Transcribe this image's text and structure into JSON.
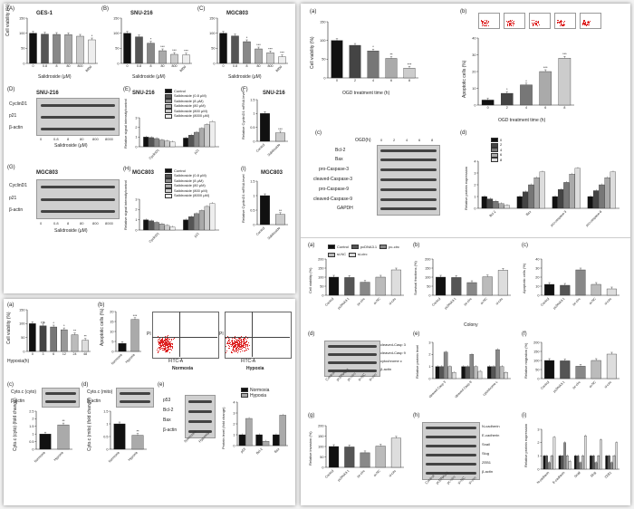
{
  "figure_left_top": {
    "panel_A": {
      "letter": "(A)",
      "title": "GES-1"
    },
    "panel_B": {
      "letter": "(B)",
      "title": "SNU-216"
    },
    "panel_C": {
      "letter": "(C)",
      "title": "MGC803"
    },
    "viability_ylabel": "Cell viability (%)",
    "salidroside_xlabel": "Salidroside (μM)",
    "dose_ticks": [
      "0",
      "0.8",
      "8",
      "80",
      "800",
      "8000"
    ],
    "panel_D": {
      "letter": "(D)",
      "title": "SNU-216",
      "bands": [
        "CyclinD1",
        "p21",
        "β-actin"
      ],
      "lanes": [
        "0",
        "0.8",
        "8",
        "80",
        "800",
        "8000"
      ],
      "xlabel": "Salidroside (μM)"
    },
    "panel_E": {
      "letter": "(E)",
      "title": "SNU-216",
      "ylabel": "Relative signal intensity/control",
      "groups": [
        "CyclinD1",
        "p21"
      ],
      "legend": [
        "Control",
        "Salidroside (0.8 μM)",
        "Salidroside (8 μM)",
        "Salidroside (80 μM)",
        "Salidroside (800 μM)",
        "Salidroside (8000 μM)"
      ]
    },
    "panel_F": {
      "letter": "(F)",
      "title": "SNU-216",
      "ylabel": "Relative CyclinD1 mRNA level",
      "categories": [
        "Control",
        "Salidroside"
      ]
    },
    "panel_G": {
      "letter": "(G)",
      "title": "MGC803",
      "bands": [
        "CyclinD1",
        "p21",
        "β-actin"
      ],
      "lanes": [
        "0",
        "0.8",
        "8",
        "80",
        "800",
        "8000"
      ],
      "xlabel": "Salidroside (μM)"
    },
    "panel_H": {
      "letter": "(H)",
      "title": "MGC803",
      "ylabel": "Relative signal intensity/control",
      "groups": [
        "CyclinD1",
        "p21"
      ],
      "legend": [
        "Control",
        "Salidroside (0.8 μM)",
        "Salidroside (8 μM)",
        "Salidroside (80 μM)",
        "Salidroside (800 μM)",
        "Salidroside (8000 μM)"
      ]
    },
    "panel_I": {
      "letter": "(I)",
      "title": "MGC803",
      "ylabel": "Relative CyclinD1 mRNA level",
      "categories": [
        "Control",
        "Salidroside"
      ]
    }
  },
  "figure_left_bottom": {
    "panel_a": {
      "letter": "(a)",
      "ylabel": "Cell viability (%)",
      "xlabel": "Hypoxia(h)",
      "ticks": [
        "0",
        "3",
        "6",
        "12",
        "24",
        "48"
      ]
    },
    "panel_b": {
      "letter": "(b)",
      "ylabel": "Apoptotic cells (%)",
      "categories": [
        "Normoxia",
        "Hypoxia"
      ],
      "flow_captions": [
        "Normoxia",
        "Hypoxia"
      ],
      "pi_label": "PI",
      "annexin_label": "FITC-A"
    },
    "panel_c": {
      "letter": "(c)",
      "bands": [
        "Cyto.c (cyto)",
        "β-actin"
      ],
      "ylabel": "Cyto.c (cyto) (fold change)",
      "categories": [
        "Normoxia",
        "Hypoxia"
      ]
    },
    "panel_d": {
      "letter": "(d)",
      "bands": [
        "Cyto.c (mito)",
        "β-actin"
      ],
      "ylabel": "Cyto.c (mito) (fold change)",
      "categories": [
        "Normoxia",
        "Hypoxia"
      ]
    },
    "panel_e": {
      "letter": "(e)",
      "bands": [
        "p53",
        "Bcl-2",
        "Bax",
        "β-actin"
      ],
      "lanes": [
        "Normoxia",
        "Hypoxia"
      ],
      "ylabel": "Protein level (fold change)",
      "groups": [
        "p53",
        "Bcl-2",
        "Bax"
      ],
      "legend": [
        "Normoxia",
        "Hypoxia"
      ]
    }
  },
  "figure_right": {
    "panel_a": {
      "letter": "(a)",
      "ylabel": "Cell viability (%)",
      "xlabel": "OGD treatment time (h)",
      "ticks": [
        "0",
        "2",
        "4",
        "6",
        "8"
      ]
    },
    "panel_b": {
      "letter": "(b)",
      "ylabel": "Apoptotic cells (%)",
      "xlabel": "OGD treatment time (h)",
      "ticks": [
        "0",
        "2",
        "4",
        "6",
        "8"
      ]
    },
    "panel_c": {
      "letter": "(c)",
      "header": "OGD(h)",
      "lanes": [
        "0",
        "2",
        "4",
        "6",
        "8"
      ],
      "bands": [
        "Bcl-2",
        "Bax",
        "pro-Caspase-3",
        "cleaved-Caspase-3",
        "pro-Caspase-9",
        "cleaved-Caspase-9",
        "GAPDH"
      ]
    },
    "panel_d": {
      "letter": "(d)",
      "ylabel": "Relative protein expression",
      "groups": [
        "Bcl-2",
        "Bax",
        "pro-caspase-3",
        "pro-caspase-9"
      ],
      "legend": [
        "0",
        "2",
        "4",
        "6",
        "8"
      ]
    },
    "lower_legend": [
      "Control",
      "pcDNA3.1",
      "pc-circ",
      "si-NC",
      "si-circ"
    ],
    "lower_categories": [
      "Control",
      "pcDNA3.1",
      "pc-circ",
      "si-NC",
      "si-circ"
    ],
    "panel_la": {
      "letter": "(a)",
      "ylabel": "Cell viability (%)"
    },
    "panel_lb": {
      "letter": "(b)",
      "ylabel": "Survival fractions (%)",
      "xlabel": "Colony"
    },
    "panel_lc": {
      "letter": "(c)",
      "ylabel": "Apoptotic cells (%)"
    },
    "panel_ld": {
      "letter": "(d)",
      "bands": [
        "cleaved-Casp 3",
        "cleaved-Casp 9",
        "cytochrome c",
        "β-actin"
      ]
    },
    "panel_le": {
      "letter": "(e)",
      "ylabel": "Relative protein level",
      "groups": [
        "cleaved Casp 3",
        "cleaved Casp 9",
        "cytochrome c"
      ]
    },
    "panel_lf": {
      "letter": "(f)",
      "ylabel": "Relative migration (%)"
    },
    "panel_lg": {
      "letter": "(g)",
      "ylabel": "Relative invasion (%)"
    },
    "panel_lh": {
      "letter": "(h)",
      "bands": [
        "N-cadherin",
        "E-cadherin",
        "Snail",
        "Slug",
        "ZEB1",
        "β-actin"
      ]
    },
    "panel_li": {
      "letter": "(i)",
      "ylabel": "Relative protein expression",
      "groups": [
        "N-cadherin",
        "E-cadherin",
        "Snail",
        "Slug",
        "ZEB1"
      ]
    }
  },
  "chart_data": [
    {
      "id": "lt-A",
      "type": "bar",
      "categories": [
        "0",
        "0.8",
        "8",
        "80",
        "800",
        "8000"
      ],
      "values": [
        100,
        97,
        96,
        95,
        90,
        78
      ],
      "ylim": [
        0,
        150
      ],
      "yticks": [
        0,
        50,
        100,
        150
      ],
      "colors": [
        "#111",
        "#555",
        "#888",
        "#aaa",
        "#ccc",
        "#eee"
      ],
      "sig": [
        "",
        "",
        "",
        "",
        "",
        "*"
      ]
    },
    {
      "id": "lt-B",
      "type": "bar",
      "categories": [
        "0",
        "0.8",
        "8",
        "80",
        "800",
        "8000"
      ],
      "values": [
        100,
        88,
        67,
        42,
        30,
        28
      ],
      "ylim": [
        0,
        150
      ],
      "yticks": [
        0,
        50,
        100,
        150
      ],
      "colors": [
        "#111",
        "#555",
        "#888",
        "#aaa",
        "#ccc",
        "#eee"
      ],
      "sig": [
        "",
        "",
        "*",
        "***",
        "***",
        "***"
      ]
    },
    {
      "id": "lt-C",
      "type": "bar",
      "categories": [
        "0",
        "0.8",
        "8",
        "80",
        "800",
        "8000"
      ],
      "values": [
        100,
        91,
        72,
        48,
        35,
        22
      ],
      "ylim": [
        0,
        150
      ],
      "yticks": [
        0,
        50,
        100,
        150
      ],
      "colors": [
        "#111",
        "#555",
        "#888",
        "#aaa",
        "#ccc",
        "#eee"
      ],
      "sig": [
        "",
        "",
        "*",
        "***",
        "***",
        "***"
      ]
    },
    {
      "id": "lt-E",
      "type": "bar",
      "categories": [
        "CyclinD1",
        "p21"
      ],
      "series": [
        {
          "values": [
            1.0,
            0.9
          ]
        },
        {
          "values": [
            0.95,
            1.2
          ]
        },
        {
          "values": [
            0.85,
            1.5
          ]
        },
        {
          "values": [
            0.7,
            1.9
          ]
        },
        {
          "values": [
            0.6,
            2.3
          ]
        },
        {
          "values": [
            0.5,
            2.6
          ]
        }
      ],
      "ylim": [
        0,
        3
      ],
      "yticks": [
        0,
        1,
        2,
        3
      ],
      "colors": [
        "#111",
        "#555",
        "#888",
        "#aaa",
        "#ccc",
        "#eee"
      ]
    },
    {
      "id": "lt-F",
      "type": "bar",
      "categories": [
        "Control",
        "Salidroside"
      ],
      "values": [
        1.0,
        0.3
      ],
      "ylim": [
        0,
        1.5
      ],
      "yticks": [
        0,
        0.5,
        1.0,
        1.5
      ],
      "colors": [
        "#111",
        "#ccc"
      ],
      "sig": [
        "",
        "***"
      ]
    },
    {
      "id": "lt-H",
      "type": "bar",
      "categories": [
        "CyclinD1",
        "p21"
      ],
      "series": [
        {
          "values": [
            1.0,
            1.0
          ]
        },
        {
          "values": [
            0.9,
            1.3
          ]
        },
        {
          "values": [
            0.75,
            1.6
          ]
        },
        {
          "values": [
            0.6,
            1.9
          ]
        },
        {
          "values": [
            0.45,
            2.3
          ]
        },
        {
          "values": [
            0.3,
            2.6
          ]
        }
      ],
      "ylim": [
        0,
        3
      ],
      "yticks": [
        0,
        1,
        2,
        3
      ],
      "colors": [
        "#111",
        "#555",
        "#888",
        "#aaa",
        "#ccc",
        "#eee"
      ]
    },
    {
      "id": "lt-I",
      "type": "bar",
      "categories": [
        "Control",
        "Salidroside"
      ],
      "values": [
        1.0,
        0.35
      ],
      "ylim": [
        0,
        1.5
      ],
      "yticks": [
        0,
        0.5,
        1.0,
        1.5
      ],
      "colors": [
        "#111",
        "#ccc"
      ],
      "sig": [
        "",
        "**"
      ]
    },
    {
      "id": "lb-a",
      "type": "bar",
      "categories": [
        "0",
        "3",
        "6",
        "12",
        "24",
        "48"
      ],
      "values": [
        100,
        92,
        88,
        78,
        60,
        40
      ],
      "ylim": [
        0,
        150
      ],
      "yticks": [
        0,
        50,
        100,
        150
      ],
      "colors": [
        "#111",
        "#444",
        "#777",
        "#999",
        "#bbb",
        "#ddd"
      ],
      "sig": [
        "",
        "ns",
        "*",
        "*",
        "**",
        "**"
      ]
    },
    {
      "id": "lb-b",
      "type": "bar",
      "categories": [
        "Normoxia",
        "Hypoxia"
      ],
      "values": [
        4,
        16
      ],
      "ylim": [
        0,
        20
      ],
      "yticks": [
        0,
        5,
        10,
        15,
        20
      ],
      "colors": [
        "#111",
        "#aaa"
      ],
      "sig": [
        "",
        "***"
      ]
    },
    {
      "id": "lb-c",
      "type": "bar",
      "categories": [
        "Normoxia",
        "Hypoxia"
      ],
      "values": [
        1.0,
        1.6
      ],
      "ylim": [
        0,
        2.5
      ],
      "yticks": [
        0,
        0.5,
        1.0,
        1.5,
        2.0,
        2.5
      ],
      "colors": [
        "#111",
        "#aaa"
      ],
      "sig": [
        "",
        "**"
      ]
    },
    {
      "id": "lb-d",
      "type": "bar",
      "categories": [
        "Normoxia",
        "Hypoxia"
      ],
      "values": [
        1.0,
        0.55
      ],
      "ylim": [
        0,
        1.5
      ],
      "yticks": [
        0,
        0.5,
        1.0,
        1.5
      ],
      "colors": [
        "#111",
        "#aaa"
      ],
      "sig": [
        "",
        "**"
      ]
    },
    {
      "id": "lb-e",
      "type": "bar",
      "categories": [
        "p53",
        "Bcl-2",
        "Bax"
      ],
      "series": [
        {
          "name": "Normoxia",
          "values": [
            1.0,
            1.0,
            1.0
          ]
        },
        {
          "name": "Hypoxia",
          "values": [
            2.5,
            0.4,
            2.8
          ]
        }
      ],
      "ylim": [
        0,
        4
      ],
      "yticks": [
        0,
        1,
        2,
        3,
        4
      ],
      "colors": [
        "#111",
        "#aaa"
      ]
    },
    {
      "id": "r-a",
      "type": "bar",
      "categories": [
        "0",
        "2",
        "4",
        "6",
        "8"
      ],
      "values": [
        100,
        87,
        72,
        52,
        26
      ],
      "ylim": [
        0,
        150
      ],
      "yticks": [
        0,
        50,
        100,
        150
      ],
      "colors": [
        "#111",
        "#444",
        "#777",
        "#aaa",
        "#ccc"
      ],
      "sig": [
        "",
        "",
        "*",
        "**",
        "***"
      ]
    },
    {
      "id": "r-b",
      "type": "bar",
      "categories": [
        "0",
        "2",
        "4",
        "6",
        "8"
      ],
      "values": [
        3,
        7,
        12,
        20,
        28
      ],
      "ylim": [
        0,
        40
      ],
      "yticks": [
        0,
        10,
        20,
        30,
        40
      ],
      "colors": [
        "#111",
        "#444",
        "#777",
        "#aaa",
        "#ccc"
      ],
      "sig": [
        "",
        "*",
        "*",
        "***",
        "***"
      ]
    },
    {
      "id": "r-d",
      "type": "bar",
      "categories": [
        "Bcl-2",
        "Bax",
        "pro-caspase-3",
        "pro-caspase-9"
      ],
      "series": [
        {
          "name": "0",
          "values": [
            1.0,
            1.0,
            1.0,
            1.0
          ]
        },
        {
          "name": "2",
          "values": [
            0.8,
            1.4,
            1.6,
            1.5
          ]
        },
        {
          "name": "4",
          "values": [
            0.6,
            2.0,
            2.2,
            2.0
          ]
        },
        {
          "name": "6",
          "values": [
            0.4,
            2.6,
            2.9,
            2.6
          ]
        },
        {
          "name": "8",
          "values": [
            0.25,
            3.1,
            3.4,
            3.1
          ]
        }
      ],
      "ylim": [
        0,
        4
      ],
      "yticks": [
        0,
        1,
        2,
        3,
        4
      ],
      "colors": [
        "#111",
        "#444",
        "#777",
        "#aaa",
        "#ddd"
      ]
    },
    {
      "id": "r-la",
      "type": "bar",
      "categories": [
        "Control",
        "pcDNA3.1",
        "pc-circ",
        "si-NC",
        "si-circ"
      ],
      "values": [
        100,
        98,
        72,
        100,
        140
      ],
      "ylim": [
        0,
        200
      ],
      "yticks": [
        0,
        50,
        100,
        150,
        200
      ],
      "colors": [
        "#111",
        "#555",
        "#888",
        "#bbb",
        "#ddd"
      ]
    },
    {
      "id": "r-lb",
      "type": "bar",
      "categories": [
        "Control",
        "pcDNA3.1",
        "pc-circ",
        "si-NC",
        "si-circ"
      ],
      "values": [
        100,
        98,
        70,
        102,
        138
      ],
      "ylim": [
        0,
        200
      ],
      "yticks": [
        0,
        50,
        100,
        150,
        200
      ],
      "colors": [
        "#111",
        "#555",
        "#888",
        "#bbb",
        "#ddd"
      ]
    },
    {
      "id": "r-lc",
      "type": "bar",
      "categories": [
        "Control",
        "pcDNA3.1",
        "pc-circ",
        "si-NC",
        "si-circ"
      ],
      "values": [
        12,
        11,
        28,
        12,
        7
      ],
      "ylim": [
        0,
        40
      ],
      "yticks": [
        0,
        10,
        20,
        30,
        40
      ],
      "colors": [
        "#111",
        "#555",
        "#888",
        "#bbb",
        "#ddd"
      ]
    },
    {
      "id": "r-le",
      "type": "bar",
      "categories": [
        "cleaved Casp 3",
        "cleaved Casp 9",
        "cytochrome c"
      ],
      "series": [
        {
          "values": [
            1.0,
            1.0,
            1.0
          ]
        },
        {
          "values": [
            1.0,
            1.0,
            1.0
          ]
        },
        {
          "values": [
            2.2,
            2.0,
            2.4
          ]
        },
        {
          "values": [
            1.0,
            1.0,
            1.0
          ]
        },
        {
          "values": [
            0.5,
            0.6,
            0.5
          ]
        }
      ],
      "ylim": [
        0,
        3
      ],
      "yticks": [
        0,
        1,
        2,
        3
      ],
      "colors": [
        "#111",
        "#555",
        "#888",
        "#bbb",
        "#ddd"
      ]
    },
    {
      "id": "r-lf",
      "type": "bar",
      "categories": [
        "Control",
        "pcDNA3.1",
        "pc-circ",
        "si-NC",
        "si-circ"
      ],
      "values": [
        100,
        98,
        68,
        100,
        135
      ],
      "ylim": [
        0,
        200
      ],
      "yticks": [
        0,
        50,
        100,
        150,
        200
      ],
      "colors": [
        "#111",
        "#555",
        "#888",
        "#bbb",
        "#ddd"
      ]
    },
    {
      "id": "r-lg",
      "type": "bar",
      "categories": [
        "Control",
        "pcDNA3.1",
        "pc-circ",
        "si-NC",
        "si-circ"
      ],
      "values": [
        100,
        98,
        70,
        102,
        140
      ],
      "ylim": [
        0,
        200
      ],
      "yticks": [
        0,
        50,
        100,
        150,
        200
      ],
      "colors": [
        "#111",
        "#555",
        "#888",
        "#bbb",
        "#ddd"
      ]
    },
    {
      "id": "r-li",
      "type": "bar",
      "categories": [
        "N-cadherin",
        "E-cadherin",
        "Snail",
        "Slug",
        "ZEB1"
      ],
      "series": [
        {
          "values": [
            1.0,
            1.0,
            1.0,
            1.0,
            1.0
          ]
        },
        {
          "values": [
            1.0,
            1.0,
            1.0,
            1.0,
            1.0
          ]
        },
        {
          "values": [
            0.5,
            2.0,
            0.5,
            0.5,
            0.5
          ]
        },
        {
          "values": [
            1.0,
            1.0,
            1.0,
            1.0,
            1.0
          ]
        },
        {
          "values": [
            2.4,
            0.6,
            2.5,
            2.2,
            2.0
          ]
        }
      ],
      "ylim": [
        0,
        3
      ],
      "yticks": [
        0,
        1,
        2,
        3
      ],
      "colors": [
        "#111",
        "#555",
        "#888",
        "#bbb",
        "#ddd"
      ]
    }
  ]
}
